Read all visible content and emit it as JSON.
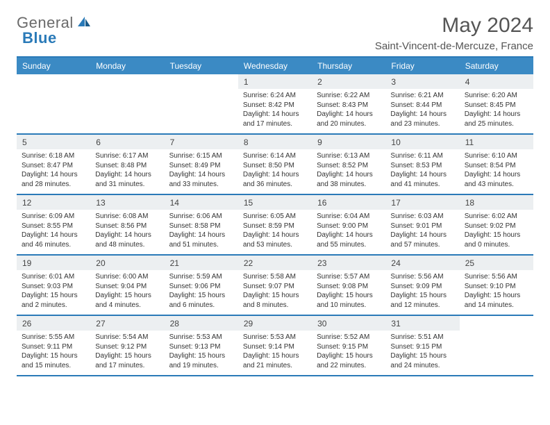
{
  "logo": {
    "text_general": "General",
    "text_blue": "Blue"
  },
  "title": "May 2024",
  "location": "Saint-Vincent-de-Mercuze, France",
  "colors": {
    "header_band": "#3b8ac4",
    "header_border": "#2a7ab8",
    "daynum_bg": "#eceff1",
    "text": "#333333"
  },
  "weekdays": [
    "Sunday",
    "Monday",
    "Tuesday",
    "Wednesday",
    "Thursday",
    "Friday",
    "Saturday"
  ],
  "weeks": [
    [
      null,
      null,
      null,
      {
        "n": "1",
        "sr": "6:24 AM",
        "ss": "8:42 PM",
        "dl": "14 hours and 17 minutes."
      },
      {
        "n": "2",
        "sr": "6:22 AM",
        "ss": "8:43 PM",
        "dl": "14 hours and 20 minutes."
      },
      {
        "n": "3",
        "sr": "6:21 AM",
        "ss": "8:44 PM",
        "dl": "14 hours and 23 minutes."
      },
      {
        "n": "4",
        "sr": "6:20 AM",
        "ss": "8:45 PM",
        "dl": "14 hours and 25 minutes."
      }
    ],
    [
      {
        "n": "5",
        "sr": "6:18 AM",
        "ss": "8:47 PM",
        "dl": "14 hours and 28 minutes."
      },
      {
        "n": "6",
        "sr": "6:17 AM",
        "ss": "8:48 PM",
        "dl": "14 hours and 31 minutes."
      },
      {
        "n": "7",
        "sr": "6:15 AM",
        "ss": "8:49 PM",
        "dl": "14 hours and 33 minutes."
      },
      {
        "n": "8",
        "sr": "6:14 AM",
        "ss": "8:50 PM",
        "dl": "14 hours and 36 minutes."
      },
      {
        "n": "9",
        "sr": "6:13 AM",
        "ss": "8:52 PM",
        "dl": "14 hours and 38 minutes."
      },
      {
        "n": "10",
        "sr": "6:11 AM",
        "ss": "8:53 PM",
        "dl": "14 hours and 41 minutes."
      },
      {
        "n": "11",
        "sr": "6:10 AM",
        "ss": "8:54 PM",
        "dl": "14 hours and 43 minutes."
      }
    ],
    [
      {
        "n": "12",
        "sr": "6:09 AM",
        "ss": "8:55 PM",
        "dl": "14 hours and 46 minutes."
      },
      {
        "n": "13",
        "sr": "6:08 AM",
        "ss": "8:56 PM",
        "dl": "14 hours and 48 minutes."
      },
      {
        "n": "14",
        "sr": "6:06 AM",
        "ss": "8:58 PM",
        "dl": "14 hours and 51 minutes."
      },
      {
        "n": "15",
        "sr": "6:05 AM",
        "ss": "8:59 PM",
        "dl": "14 hours and 53 minutes."
      },
      {
        "n": "16",
        "sr": "6:04 AM",
        "ss": "9:00 PM",
        "dl": "14 hours and 55 minutes."
      },
      {
        "n": "17",
        "sr": "6:03 AM",
        "ss": "9:01 PM",
        "dl": "14 hours and 57 minutes."
      },
      {
        "n": "18",
        "sr": "6:02 AM",
        "ss": "9:02 PM",
        "dl": "15 hours and 0 minutes."
      }
    ],
    [
      {
        "n": "19",
        "sr": "6:01 AM",
        "ss": "9:03 PM",
        "dl": "15 hours and 2 minutes."
      },
      {
        "n": "20",
        "sr": "6:00 AM",
        "ss": "9:04 PM",
        "dl": "15 hours and 4 minutes."
      },
      {
        "n": "21",
        "sr": "5:59 AM",
        "ss": "9:06 PM",
        "dl": "15 hours and 6 minutes."
      },
      {
        "n": "22",
        "sr": "5:58 AM",
        "ss": "9:07 PM",
        "dl": "15 hours and 8 minutes."
      },
      {
        "n": "23",
        "sr": "5:57 AM",
        "ss": "9:08 PM",
        "dl": "15 hours and 10 minutes."
      },
      {
        "n": "24",
        "sr": "5:56 AM",
        "ss": "9:09 PM",
        "dl": "15 hours and 12 minutes."
      },
      {
        "n": "25",
        "sr": "5:56 AM",
        "ss": "9:10 PM",
        "dl": "15 hours and 14 minutes."
      }
    ],
    [
      {
        "n": "26",
        "sr": "5:55 AM",
        "ss": "9:11 PM",
        "dl": "15 hours and 15 minutes."
      },
      {
        "n": "27",
        "sr": "5:54 AM",
        "ss": "9:12 PM",
        "dl": "15 hours and 17 minutes."
      },
      {
        "n": "28",
        "sr": "5:53 AM",
        "ss": "9:13 PM",
        "dl": "15 hours and 19 minutes."
      },
      {
        "n": "29",
        "sr": "5:53 AM",
        "ss": "9:14 PM",
        "dl": "15 hours and 21 minutes."
      },
      {
        "n": "30",
        "sr": "5:52 AM",
        "ss": "9:15 PM",
        "dl": "15 hours and 22 minutes."
      },
      {
        "n": "31",
        "sr": "5:51 AM",
        "ss": "9:15 PM",
        "dl": "15 hours and 24 minutes."
      },
      null
    ]
  ],
  "labels": {
    "sunrise": "Sunrise: ",
    "sunset": "Sunset: ",
    "daylight": "Daylight: "
  }
}
